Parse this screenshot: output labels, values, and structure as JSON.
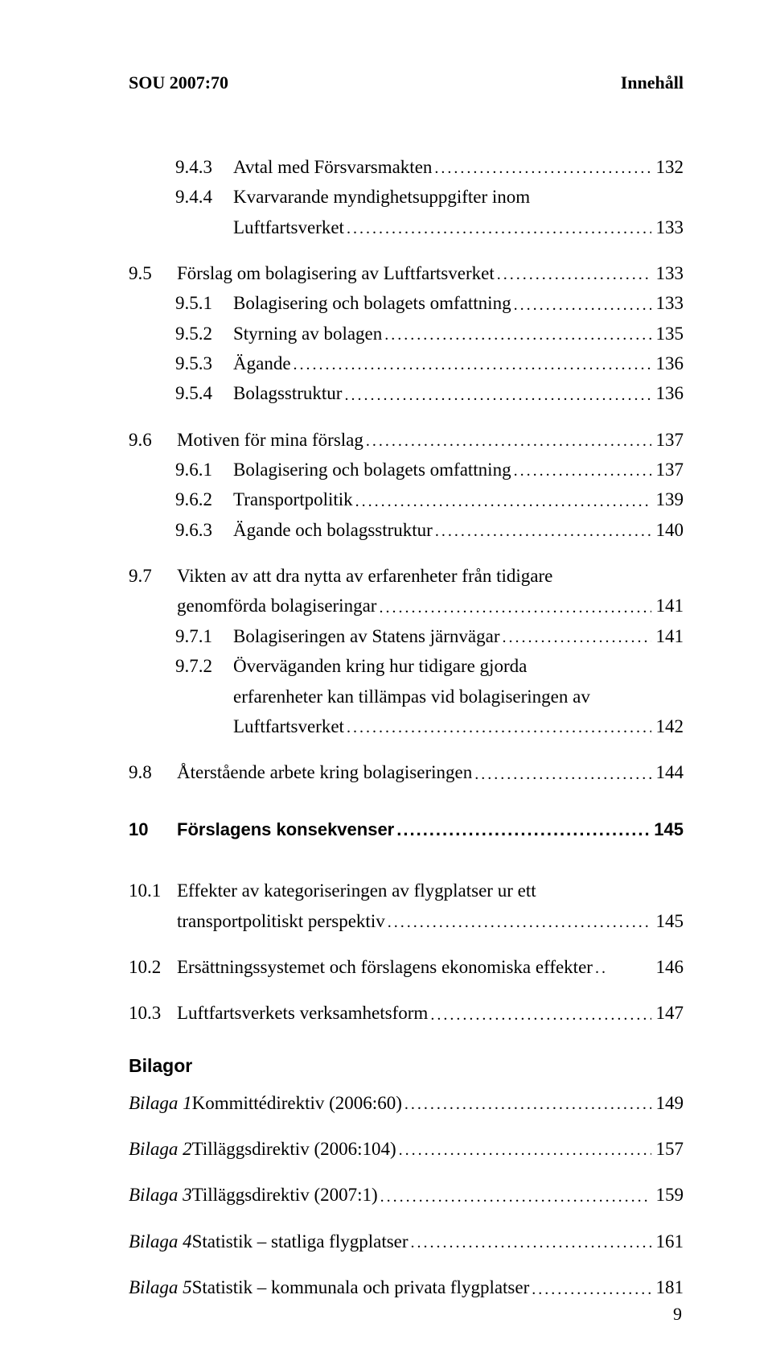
{
  "running_head": {
    "left": "SOU 2007:70",
    "right": "Innehåll"
  },
  "page_number": "9",
  "leader_fill": "......................................................................................................................................................",
  "bilagor_heading": "Bilagor",
  "entries": [
    {
      "indent": "1",
      "label": "9.4.3",
      "text": "Avtal med Försvarsmakten",
      "page": "132"
    },
    {
      "indent": "1",
      "label": "9.4.4",
      "multiline": true,
      "text1": "Kvarvarande myndighetsuppgifter inom",
      "text2": "Luftfartsverket",
      "page": "133"
    },
    {
      "indent": "0",
      "label": "9.5",
      "text": "Förslag om bolagisering av Luftfartsverket",
      "page": "133"
    },
    {
      "indent": "1",
      "label": "9.5.1",
      "text": "Bolagisering och bolagets omfattning",
      "page": "133"
    },
    {
      "indent": "1",
      "label": "9.5.2",
      "text": "Styrning av bolagen",
      "page": "135"
    },
    {
      "indent": "1",
      "label": "9.5.3",
      "text": "Ägande",
      "page": "136"
    },
    {
      "indent": "1",
      "label": "9.5.4",
      "text": "Bolagsstruktur",
      "page": "136"
    },
    {
      "indent": "0",
      "label": "9.6",
      "text": "Motiven för mina förslag",
      "page": "137"
    },
    {
      "indent": "1",
      "label": "9.6.1",
      "text": "Bolagisering och bolagets omfattning",
      "page": "137"
    },
    {
      "indent": "1",
      "label": "9.6.2",
      "text": "Transportpolitik",
      "page": "139"
    },
    {
      "indent": "1",
      "label": "9.6.3",
      "text": "Ägande och bolagsstruktur",
      "page": "140"
    },
    {
      "indent": "0",
      "label": "9.7",
      "multiline": true,
      "text1": "Vikten av att dra nytta av erfarenheter från tidigare",
      "text2": "genomförda bolagiseringar",
      "page": "141"
    },
    {
      "indent": "1",
      "label": "9.7.1",
      "text": "Bolagiseringen av Statens järnvägar",
      "page": "141"
    },
    {
      "indent": "1",
      "label": "9.7.2",
      "multiline3": true,
      "text1": "Överväganden kring hur tidigare gjorda",
      "text2": "erfarenheter kan tillämpas vid bolagiseringen av",
      "text3": "Luftfartsverket",
      "page": "142"
    },
    {
      "indent": "0",
      "label": "9.8",
      "text": "Återstående arbete kring bolagiseringen",
      "page": "144"
    },
    {
      "bold": true,
      "indent": "0",
      "label": "10",
      "text": "Förslagens konsekvenser",
      "page": "145"
    },
    {
      "indent": "0",
      "label": "10.1",
      "multiline": true,
      "text1": "Effekter av kategoriseringen av flygplatser ur ett",
      "text2": "transportpolitiskt perspektiv",
      "page": "145"
    },
    {
      "indent": "0",
      "label": "10.2",
      "text": "Ersättningssystemet och förslagens ekonomiska effekter",
      "page": "146",
      "short_leader": ".."
    },
    {
      "indent": "0",
      "label": "10.3",
      "text": "Luftfartsverkets verksamhetsform",
      "page": "147"
    }
  ],
  "bilagor": [
    {
      "label_italic": "Bilaga 1",
      "text": " Kommittédirektiv (2006:60)",
      "page": "149"
    },
    {
      "label_italic": "Bilaga 2",
      "text": " Tilläggsdirektiv (2006:104)",
      "page": "157"
    },
    {
      "label_italic": "Bilaga 3",
      "text": " Tilläggsdirektiv (2007:1)",
      "page": "159"
    },
    {
      "label_italic": "Bilaga 4",
      "text": " Statistik – statliga flygplatser",
      "page": "161"
    },
    {
      "label_italic": "Bilaga 5",
      "text": " Statistik – kommunala och privata flygplatser",
      "page": "181"
    }
  ]
}
